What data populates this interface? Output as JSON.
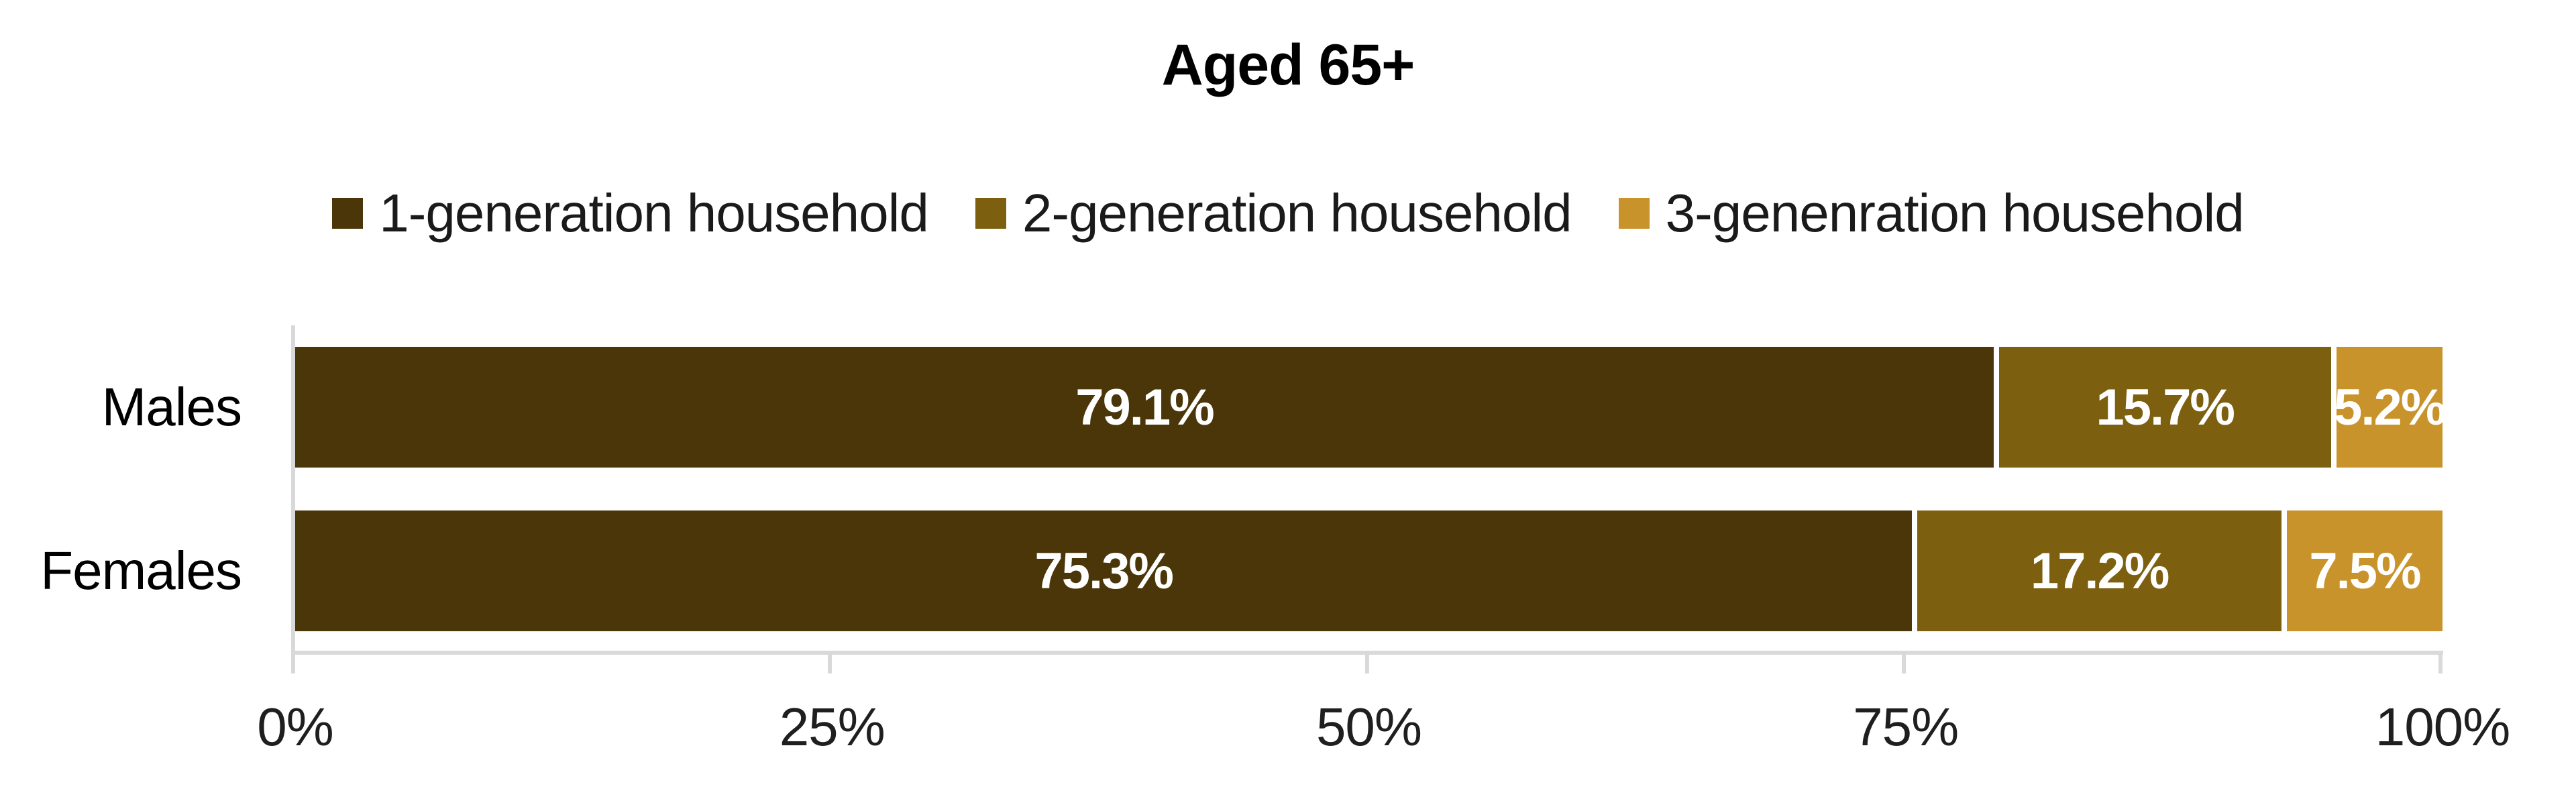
{
  "title": "Aged 65+",
  "chart_data": {
    "type": "bar",
    "orientation": "horizontal",
    "stacked": true,
    "title": "Aged 65+",
    "categories": [
      "Males",
      "Females"
    ],
    "series": [
      {
        "name": "1-generation household",
        "color": "#4A3608",
        "values": [
          79.1,
          75.3
        ],
        "labels": [
          "79.1%",
          "75.3%"
        ]
      },
      {
        "name": "2-generation household",
        "color": "#7D5F10",
        "values": [
          15.7,
          17.2
        ],
        "labels": [
          "15.7%",
          "17.2%"
        ]
      },
      {
        "name": "3-genenration household",
        "color": "#C9932B",
        "values": [
          5.2,
          7.5
        ],
        "labels": [
          "5.2%",
          "7.5%"
        ]
      }
    ],
    "x_axis": {
      "tick_labels": [
        "0%",
        "25%",
        "50%",
        "75%",
        "100%"
      ],
      "range": [
        0,
        100
      ],
      "grid": false
    },
    "legend_position": "top",
    "axis_color": "#D9D9D9",
    "value_label_color": "#FFFFFF",
    "text_color": "#1A1A1A",
    "background_color": "#FFFFFF"
  }
}
